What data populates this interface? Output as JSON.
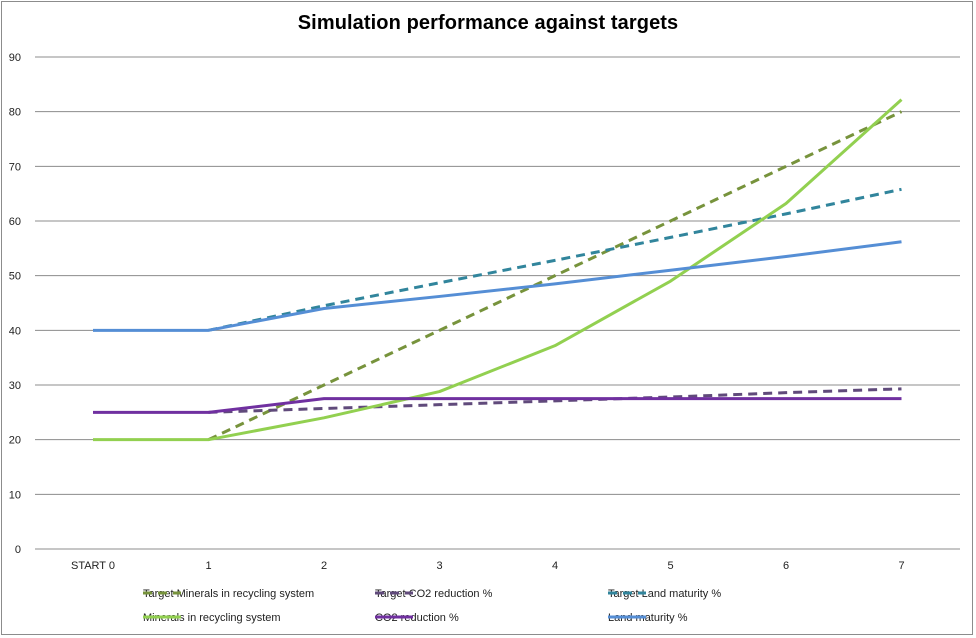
{
  "chart_data": {
    "type": "line",
    "title": "Simulation performance against targets",
    "categories": [
      "START 0",
      "1",
      "2",
      "3",
      "4",
      "5",
      "6",
      "7"
    ],
    "ylim": [
      0,
      90
    ],
    "yticks": [
      0,
      10,
      20,
      30,
      40,
      50,
      60,
      70,
      80,
      90
    ],
    "grid": true,
    "legend_position": "bottom",
    "series": [
      {
        "name": "Target Minerals in recycling system",
        "color": "#77933c",
        "dashed": true,
        "start_index": 1,
        "values": [
          null,
          20,
          30,
          40,
          50,
          60,
          70,
          80
        ]
      },
      {
        "name": "Target CO2 reduction %",
        "color": "#604a7b",
        "dashed": true,
        "start_index": 1,
        "values": [
          null,
          25,
          25.7,
          26.4,
          27.1,
          27.8,
          28.6,
          29.3
        ]
      },
      {
        "name": "Target Land maturity  %",
        "color": "#31859c",
        "dashed": true,
        "start_index": 1,
        "values": [
          null,
          40,
          44.5,
          48.7,
          52.8,
          57,
          61.3,
          65.8
        ]
      },
      {
        "name": "Minerals in recycling system",
        "color": "#92d050",
        "dashed": false,
        "start_index": 0,
        "values": [
          20,
          20,
          24,
          28.8,
          37.2,
          49,
          63.2,
          82.2
        ]
      },
      {
        "name": "CO2 reduction %",
        "color": "#7030a0",
        "dashed": false,
        "start_index": 0,
        "values": [
          25,
          25,
          27.5,
          27.5,
          27.5,
          27.5,
          27.5,
          27.5
        ]
      },
      {
        "name": "Land maturity  %",
        "color": "#558ed5",
        "dashed": false,
        "start_index": 0,
        "values": [
          40,
          40,
          44,
          46.2,
          48.5,
          51,
          53.5,
          56.2
        ]
      }
    ]
  }
}
